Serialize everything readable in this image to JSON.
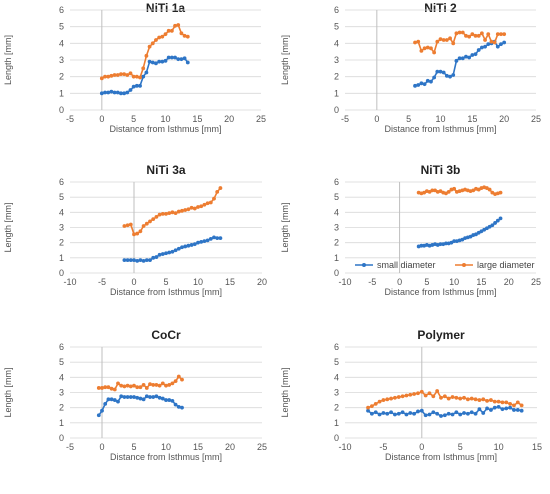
{
  "legend": {
    "series": [
      "small diameter",
      "large diameter"
    ]
  },
  "chart_data": [
    {
      "type": "line",
      "title": "NiTi 1a",
      "xlabel": "Distance from Isthmus [mm]",
      "ylabel": "Length [mm]",
      "xlim": [
        -5,
        25
      ],
      "ylim": [
        0,
        6
      ],
      "xticks": [
        -5,
        0,
        5,
        10,
        15,
        20,
        25
      ],
      "yticks": [
        0,
        1,
        2,
        3,
        4,
        5,
        6
      ],
      "grid": true,
      "legend": "none",
      "colors": [
        "#2e75c6",
        "#ed7d31"
      ],
      "series": [
        {
          "x": [
            0,
            0.5,
            1,
            1.5,
            2,
            2.5,
            3,
            3.5,
            4,
            4.5,
            5,
            5.5,
            6,
            6.5,
            7,
            7.5,
            8,
            8.5,
            9,
            9.5,
            10,
            10.5,
            11,
            11.5,
            12,
            12.5,
            13,
            13.5
          ],
          "y": [
            1.0,
            1.05,
            1.05,
            1.1,
            1.05,
            1.05,
            1.0,
            1.0,
            1.05,
            1.2,
            1.4,
            1.45,
            1.45,
            2.0,
            2.25,
            2.9,
            2.85,
            2.8,
            2.9,
            2.9,
            2.95,
            3.15,
            3.15,
            3.15,
            3.05,
            3.05,
            3.1,
            2.85
          ]
        },
        {
          "x": [
            0,
            0.5,
            1,
            1.5,
            2,
            2.5,
            3,
            3.5,
            4,
            4.5,
            5,
            5.5,
            6,
            6.5,
            7,
            7.5,
            8,
            8.5,
            9,
            9.5,
            10,
            10.5,
            11,
            11.5,
            12,
            12.5,
            13,
            13.5
          ],
          "y": [
            1.9,
            2.0,
            2.0,
            2.05,
            2.1,
            2.1,
            2.15,
            2.15,
            2.1,
            2.2,
            2.0,
            2.0,
            1.95,
            2.5,
            3.25,
            3.8,
            4.0,
            4.2,
            4.35,
            4.4,
            4.55,
            4.75,
            4.75,
            5.05,
            5.1,
            4.6,
            4.45,
            4.4
          ]
        }
      ]
    },
    {
      "type": "line",
      "title": "NiTi 2",
      "xlabel": "Distance from Isthmus [mm]",
      "ylabel": "Length [mm]",
      "xlim": [
        -5,
        25
      ],
      "ylim": [
        0,
        6
      ],
      "xticks": [
        -5,
        0,
        5,
        10,
        15,
        20,
        25
      ],
      "yticks": [
        0,
        1,
        2,
        3,
        4,
        5,
        6
      ],
      "grid": true,
      "legend": "none",
      "colors": [
        "#2e75c6",
        "#ed7d31"
      ],
      "series": [
        {
          "x": [
            6,
            6.5,
            7,
            7.5,
            8,
            8.5,
            9,
            9.5,
            10,
            10.5,
            11,
            11.5,
            12,
            12.5,
            13,
            13.5,
            14,
            14.5,
            15,
            15.5,
            16,
            16.5,
            17,
            17.5,
            18,
            18.5,
            19,
            19.5,
            20
          ],
          "y": [
            1.45,
            1.5,
            1.6,
            1.55,
            1.75,
            1.7,
            1.95,
            2.3,
            2.3,
            2.25,
            2.05,
            2.0,
            2.1,
            2.95,
            3.1,
            3.1,
            3.2,
            3.15,
            3.3,
            3.35,
            3.6,
            3.75,
            3.8,
            3.95,
            4.0,
            4.1,
            3.8,
            3.95,
            4.05
          ]
        },
        {
          "x": [
            6,
            6.5,
            7,
            7.5,
            8,
            8.5,
            9,
            9.5,
            10,
            10.5,
            11,
            11.5,
            12,
            12.5,
            13,
            13.5,
            14,
            14.5,
            15,
            15.5,
            16,
            16.5,
            17,
            17.5,
            18,
            18.5,
            19,
            19.5,
            20
          ],
          "y": [
            4.05,
            4.1,
            3.55,
            3.7,
            3.75,
            3.7,
            3.45,
            4.1,
            4.25,
            4.2,
            4.2,
            4.3,
            4.0,
            4.6,
            4.65,
            4.65,
            4.45,
            4.4,
            4.55,
            4.45,
            4.45,
            4.6,
            4.2,
            4.55,
            4.1,
            4.05,
            4.55,
            4.55,
            4.55
          ]
        }
      ]
    },
    {
      "type": "line",
      "title": "NiTi 3a",
      "xlabel": "Distance from Isthmus [mm]",
      "ylabel": "Length [mm]",
      "xlim": [
        -10,
        20
      ],
      "ylim": [
        0,
        6
      ],
      "xticks": [
        -10,
        -5,
        0,
        5,
        10,
        15,
        20
      ],
      "yticks": [
        0,
        1,
        2,
        3,
        4,
        5,
        6
      ],
      "grid": true,
      "legend": "none",
      "colors": [
        "#2e75c6",
        "#ed7d31"
      ],
      "series": [
        {
          "x": [
            -1.5,
            -1,
            -0.5,
            0,
            0.5,
            1,
            1.5,
            2,
            2.5,
            3,
            3.5,
            4,
            4.5,
            5,
            5.5,
            6,
            6.5,
            7,
            7.5,
            8,
            8.5,
            9,
            9.5,
            10,
            10.5,
            11,
            11.5,
            12,
            12.5,
            13,
            13.5
          ],
          "y": [
            0.85,
            0.85,
            0.85,
            0.85,
            0.8,
            0.85,
            0.8,
            0.85,
            0.85,
            1.0,
            1.05,
            1.2,
            1.25,
            1.3,
            1.35,
            1.4,
            1.5,
            1.6,
            1.7,
            1.75,
            1.8,
            1.85,
            1.9,
            2.0,
            2.05,
            2.1,
            2.15,
            2.25,
            2.35,
            2.3,
            2.3
          ]
        },
        {
          "x": [
            -1.5,
            -1,
            -0.5,
            0,
            0.5,
            1,
            1.5,
            2,
            2.5,
            3,
            3.5,
            4,
            4.5,
            5,
            5.5,
            6,
            6.5,
            7,
            7.5,
            8,
            8.5,
            9,
            9.5,
            10,
            10.5,
            11,
            11.5,
            12,
            12.5,
            13,
            13.5
          ],
          "y": [
            3.1,
            3.15,
            3.2,
            2.55,
            2.6,
            2.75,
            3.1,
            3.25,
            3.4,
            3.55,
            3.7,
            3.85,
            3.9,
            3.9,
            3.95,
            4.0,
            3.95,
            4.05,
            4.1,
            4.15,
            4.2,
            4.3,
            4.25,
            4.35,
            4.4,
            4.5,
            4.6,
            4.65,
            4.9,
            5.35,
            5.6
          ]
        }
      ]
    },
    {
      "type": "line",
      "title": "NiTi 3b",
      "xlabel": "Distance from Isthmus [mm]",
      "ylabel": "Length [mm]",
      "xlim": [
        -10,
        25
      ],
      "ylim": [
        0,
        6
      ],
      "xticks": [
        -10,
        -5,
        0,
        5,
        10,
        15,
        20,
        25
      ],
      "yticks": [
        0,
        1,
        2,
        3,
        4,
        5,
        6
      ],
      "grid": true,
      "legend": "bottom",
      "colors": [
        "#2e75c6",
        "#ed7d31"
      ],
      "series": [
        {
          "name": "small diameter",
          "x": [
            3.5,
            4,
            4.5,
            5,
            5.5,
            6,
            6.5,
            7,
            7.5,
            8,
            8.5,
            9,
            9.5,
            10,
            10.5,
            11,
            11.5,
            12,
            12.5,
            13,
            13.5,
            14,
            14.5,
            15,
            15.5,
            16,
            16.5,
            17,
            17.5,
            18,
            18.5
          ],
          "y": [
            1.75,
            1.8,
            1.8,
            1.85,
            1.8,
            1.85,
            1.9,
            1.85,
            1.9,
            1.9,
            1.95,
            1.95,
            2.0,
            2.1,
            2.1,
            2.15,
            2.2,
            2.3,
            2.35,
            2.4,
            2.5,
            2.55,
            2.65,
            2.75,
            2.85,
            2.95,
            3.05,
            3.15,
            3.3,
            3.45,
            3.6
          ]
        },
        {
          "name": "large diameter",
          "x": [
            3.5,
            4,
            4.5,
            5,
            5.5,
            6,
            6.5,
            7,
            7.5,
            8,
            8.5,
            9,
            9.5,
            10,
            10.5,
            11,
            11.5,
            12,
            12.5,
            13,
            13.5,
            14,
            14.5,
            15,
            15.5,
            16,
            16.5,
            17,
            17.5,
            18,
            18.5
          ],
          "y": [
            5.3,
            5.25,
            5.3,
            5.4,
            5.35,
            5.45,
            5.45,
            5.35,
            5.4,
            5.3,
            5.25,
            5.35,
            5.5,
            5.55,
            5.35,
            5.4,
            5.45,
            5.5,
            5.45,
            5.4,
            5.45,
            5.55,
            5.5,
            5.6,
            5.65,
            5.6,
            5.5,
            5.3,
            5.2,
            5.25,
            5.3
          ]
        }
      ]
    },
    {
      "type": "line",
      "title": "CoCr",
      "xlabel": "Distance from Isthmus [mm]",
      "ylabel": "Length [mm]",
      "xlim": [
        -5,
        25
      ],
      "ylim": [
        0,
        6
      ],
      "xticks": [
        -5,
        0,
        5,
        10,
        15,
        20,
        25
      ],
      "yticks": [
        0,
        1,
        2,
        3,
        4,
        5,
        6
      ],
      "grid": true,
      "legend": "none",
      "colors": [
        "#2e75c6",
        "#ed7d31"
      ],
      "series": [
        {
          "x": [
            -0.5,
            0,
            0.5,
            1,
            1.5,
            2,
            2.5,
            3,
            3.5,
            4,
            4.5,
            5,
            5.5,
            6,
            6.5,
            7,
            7.5,
            8,
            8.5,
            9,
            9.5,
            10,
            10.5,
            11,
            11.5,
            12,
            12.5
          ],
          "y": [
            1.5,
            1.8,
            2.25,
            2.55,
            2.55,
            2.5,
            2.4,
            2.75,
            2.7,
            2.7,
            2.7,
            2.7,
            2.65,
            2.6,
            2.55,
            2.75,
            2.7,
            2.7,
            2.75,
            2.65,
            2.6,
            2.5,
            2.5,
            2.45,
            2.2,
            2.05,
            2.0
          ]
        },
        {
          "x": [
            -0.5,
            0,
            0.5,
            1,
            1.5,
            2,
            2.5,
            3,
            3.5,
            4,
            4.5,
            5,
            5.5,
            6,
            6.5,
            7,
            7.5,
            8,
            8.5,
            9,
            9.5,
            10,
            10.5,
            11,
            11.5,
            12,
            12.5
          ],
          "y": [
            3.3,
            3.3,
            3.35,
            3.35,
            3.25,
            3.2,
            3.6,
            3.45,
            3.4,
            3.45,
            3.4,
            3.45,
            3.35,
            3.35,
            3.5,
            3.3,
            3.55,
            3.5,
            3.5,
            3.45,
            3.6,
            3.45,
            3.5,
            3.6,
            3.75,
            4.05,
            3.85
          ]
        }
      ]
    },
    {
      "type": "line",
      "title": "Polymer",
      "xlabel": "Distance from Isthmus [mm]",
      "ylabel": "Length [mm]",
      "xlim": [
        -10,
        15
      ],
      "ylim": [
        0,
        6
      ],
      "xticks": [
        -10,
        -5,
        0,
        5,
        10,
        15
      ],
      "yticks": [
        0,
        1,
        2,
        3,
        4,
        5,
        6
      ],
      "grid": true,
      "legend": "none",
      "colors": [
        "#2e75c6",
        "#ed7d31"
      ],
      "series": [
        {
          "x": [
            -7,
            -6.5,
            -6,
            -5.5,
            -5,
            -4.5,
            -4,
            -3.5,
            -3,
            -2.5,
            -2,
            -1.5,
            -1,
            -0.5,
            0,
            0.5,
            1,
            1.5,
            2,
            2.5,
            3,
            3.5,
            4,
            4.5,
            5,
            5.5,
            6,
            6.5,
            7,
            7.5,
            8,
            8.5,
            9,
            9.5,
            10,
            10.5,
            11,
            11.5,
            12,
            12.5,
            13
          ],
          "y": [
            1.8,
            1.6,
            1.7,
            1.55,
            1.65,
            1.6,
            1.7,
            1.55,
            1.6,
            1.7,
            1.55,
            1.65,
            1.6,
            1.75,
            1.8,
            1.5,
            1.55,
            1.7,
            1.6,
            1.45,
            1.5,
            1.6,
            1.55,
            1.7,
            1.55,
            1.65,
            1.6,
            1.7,
            1.6,
            1.9,
            1.65,
            1.95,
            1.85,
            2.0,
            2.05,
            1.9,
            1.95,
            2.0,
            1.85,
            1.85,
            1.8
          ]
        },
        {
          "x": [
            -7,
            -6.5,
            -6,
            -5.5,
            -5,
            -4.5,
            -4,
            -3.5,
            -3,
            -2.5,
            -2,
            -1.5,
            -1,
            -0.5,
            0,
            0.5,
            1,
            1.5,
            2,
            2.5,
            3,
            3.5,
            4,
            4.5,
            5,
            5.5,
            6,
            6.5,
            7,
            7.5,
            8,
            8.5,
            9,
            9.5,
            10,
            10.5,
            11,
            11.5,
            12,
            12.5,
            13
          ],
          "y": [
            2.0,
            2.1,
            2.25,
            2.4,
            2.5,
            2.55,
            2.6,
            2.65,
            2.7,
            2.75,
            2.8,
            2.85,
            2.9,
            2.95,
            3.05,
            2.8,
            2.95,
            2.75,
            3.1,
            2.65,
            2.75,
            2.6,
            2.7,
            2.65,
            2.6,
            2.65,
            2.55,
            2.6,
            2.55,
            2.5,
            2.55,
            2.45,
            2.5,
            2.4,
            2.4,
            2.35,
            2.35,
            2.25,
            2.15,
            2.35,
            2.15
          ]
        }
      ]
    }
  ]
}
